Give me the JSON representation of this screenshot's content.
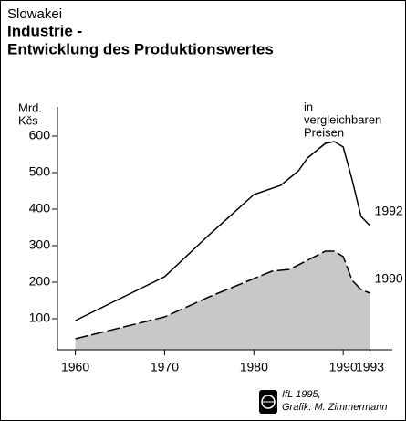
{
  "chart_data": {
    "type": "line",
    "subtitle": "Slowakei",
    "title": [
      "Industrie -",
      "Entwicklung des Produktionswertes"
    ],
    "y_label": [
      "Mrd.",
      "Kčs"
    ],
    "annotation": [
      "in",
      "vergleichbaren",
      "Preisen"
    ],
    "credit": [
      "IfL 1995,",
      "Grafik: M. Zimmermann"
    ],
    "xlim": [
      1958,
      1995.5
    ],
    "xticks": [
      1960,
      1970,
      1980,
      1990,
      1993
    ],
    "ylim": [
      15,
      680
    ],
    "yticks": [
      100,
      200,
      300,
      400,
      500,
      600
    ],
    "series": [
      {
        "name": "1992",
        "color": "#000000",
        "dash": false,
        "x": [
          1960,
          1965,
          1970,
          1975,
          1980,
          1983,
          1985,
          1986,
          1987,
          1988,
          1989,
          1990,
          1991,
          1992,
          1993
        ],
        "values": [
          95,
          155,
          215,
          330,
          440,
          465,
          505,
          540,
          560,
          580,
          585,
          570,
          480,
          380,
          355
        ]
      },
      {
        "name": "1990",
        "color": "#000000",
        "fill": "#c8c8c8",
        "dash": true,
        "x": [
          1960,
          1965,
          1970,
          1975,
          1980,
          1982,
          1984,
          1986,
          1988,
          1989,
          1990,
          1991,
          1992,
          1993
        ],
        "values": [
          45,
          75,
          105,
          160,
          210,
          230,
          235,
          260,
          285,
          285,
          270,
          205,
          180,
          170
        ]
      }
    ]
  }
}
